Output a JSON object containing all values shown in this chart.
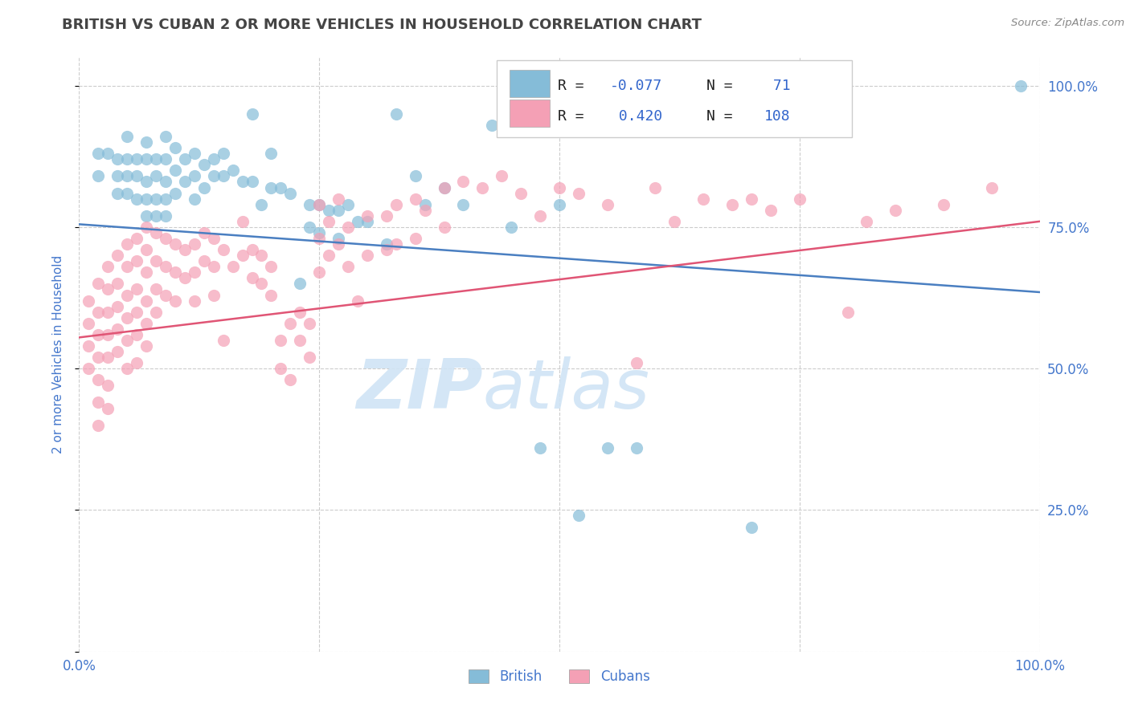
{
  "title": "BRITISH VS CUBAN 2 OR MORE VEHICLES IN HOUSEHOLD CORRELATION CHART",
  "source_text": "Source: ZipAtlas.com",
  "ylabel": "2 or more Vehicles in Household",
  "xlim": [
    0.0,
    1.0
  ],
  "ylim": [
    0.0,
    1.05
  ],
  "british_color": "#85bcd8",
  "cuban_color": "#f4a0b5",
  "british_line_color": "#4a7fc1",
  "cuban_line_color": "#e05575",
  "legend_british_label": "British",
  "legend_cuban_label": "Cubans",
  "R_british": -0.077,
  "N_british": 71,
  "R_cuban": 0.42,
  "N_cuban": 108,
  "watermark": "ZIPatlas",
  "background_color": "#ffffff",
  "grid_color": "#cccccc",
  "title_color": "#444444",
  "label_color": "#4477cc",
  "tick_color": "#4477cc",
  "legend_text_color": "#3366cc",
  "legend_label_color": "#222222",
  "british_points": [
    [
      0.02,
      0.88
    ],
    [
      0.02,
      0.84
    ],
    [
      0.03,
      0.88
    ],
    [
      0.04,
      0.87
    ],
    [
      0.04,
      0.84
    ],
    [
      0.04,
      0.81
    ],
    [
      0.05,
      0.91
    ],
    [
      0.05,
      0.87
    ],
    [
      0.05,
      0.84
    ],
    [
      0.05,
      0.81
    ],
    [
      0.06,
      0.87
    ],
    [
      0.06,
      0.84
    ],
    [
      0.06,
      0.8
    ],
    [
      0.07,
      0.9
    ],
    [
      0.07,
      0.87
    ],
    [
      0.07,
      0.83
    ],
    [
      0.07,
      0.8
    ],
    [
      0.07,
      0.77
    ],
    [
      0.08,
      0.87
    ],
    [
      0.08,
      0.84
    ],
    [
      0.08,
      0.8
    ],
    [
      0.08,
      0.77
    ],
    [
      0.09,
      0.91
    ],
    [
      0.09,
      0.87
    ],
    [
      0.09,
      0.83
    ],
    [
      0.09,
      0.8
    ],
    [
      0.09,
      0.77
    ],
    [
      0.1,
      0.89
    ],
    [
      0.1,
      0.85
    ],
    [
      0.1,
      0.81
    ],
    [
      0.11,
      0.87
    ],
    [
      0.11,
      0.83
    ],
    [
      0.12,
      0.88
    ],
    [
      0.12,
      0.84
    ],
    [
      0.12,
      0.8
    ],
    [
      0.13,
      0.86
    ],
    [
      0.13,
      0.82
    ],
    [
      0.14,
      0.87
    ],
    [
      0.14,
      0.84
    ],
    [
      0.15,
      0.88
    ],
    [
      0.15,
      0.84
    ],
    [
      0.16,
      0.85
    ],
    [
      0.17,
      0.83
    ],
    [
      0.18,
      0.95
    ],
    [
      0.18,
      0.83
    ],
    [
      0.19,
      0.79
    ],
    [
      0.2,
      0.88
    ],
    [
      0.2,
      0.82
    ],
    [
      0.21,
      0.82
    ],
    [
      0.22,
      0.81
    ],
    [
      0.23,
      0.65
    ],
    [
      0.24,
      0.79
    ],
    [
      0.24,
      0.75
    ],
    [
      0.25,
      0.79
    ],
    [
      0.25,
      0.74
    ],
    [
      0.26,
      0.78
    ],
    [
      0.27,
      0.78
    ],
    [
      0.27,
      0.73
    ],
    [
      0.28,
      0.79
    ],
    [
      0.29,
      0.76
    ],
    [
      0.3,
      0.76
    ],
    [
      0.32,
      0.72
    ],
    [
      0.33,
      0.95
    ],
    [
      0.35,
      0.84
    ],
    [
      0.36,
      0.79
    ],
    [
      0.38,
      0.82
    ],
    [
      0.4,
      0.79
    ],
    [
      0.43,
      0.93
    ],
    [
      0.45,
      0.75
    ],
    [
      0.48,
      0.36
    ],
    [
      0.5,
      0.79
    ],
    [
      0.52,
      0.24
    ],
    [
      0.55,
      0.36
    ],
    [
      0.58,
      0.36
    ],
    [
      0.7,
      0.22
    ],
    [
      0.98,
      1.0
    ]
  ],
  "cuban_points": [
    [
      0.01,
      0.62
    ],
    [
      0.01,
      0.58
    ],
    [
      0.01,
      0.54
    ],
    [
      0.01,
      0.5
    ],
    [
      0.02,
      0.65
    ],
    [
      0.02,
      0.6
    ],
    [
      0.02,
      0.56
    ],
    [
      0.02,
      0.52
    ],
    [
      0.02,
      0.48
    ],
    [
      0.02,
      0.44
    ],
    [
      0.02,
      0.4
    ],
    [
      0.03,
      0.68
    ],
    [
      0.03,
      0.64
    ],
    [
      0.03,
      0.6
    ],
    [
      0.03,
      0.56
    ],
    [
      0.03,
      0.52
    ],
    [
      0.03,
      0.47
    ],
    [
      0.03,
      0.43
    ],
    [
      0.04,
      0.7
    ],
    [
      0.04,
      0.65
    ],
    [
      0.04,
      0.61
    ],
    [
      0.04,
      0.57
    ],
    [
      0.04,
      0.53
    ],
    [
      0.05,
      0.72
    ],
    [
      0.05,
      0.68
    ],
    [
      0.05,
      0.63
    ],
    [
      0.05,
      0.59
    ],
    [
      0.05,
      0.55
    ],
    [
      0.05,
      0.5
    ],
    [
      0.06,
      0.73
    ],
    [
      0.06,
      0.69
    ],
    [
      0.06,
      0.64
    ],
    [
      0.06,
      0.6
    ],
    [
      0.06,
      0.56
    ],
    [
      0.06,
      0.51
    ],
    [
      0.07,
      0.75
    ],
    [
      0.07,
      0.71
    ],
    [
      0.07,
      0.67
    ],
    [
      0.07,
      0.62
    ],
    [
      0.07,
      0.58
    ],
    [
      0.07,
      0.54
    ],
    [
      0.08,
      0.74
    ],
    [
      0.08,
      0.69
    ],
    [
      0.08,
      0.64
    ],
    [
      0.08,
      0.6
    ],
    [
      0.09,
      0.73
    ],
    [
      0.09,
      0.68
    ],
    [
      0.09,
      0.63
    ],
    [
      0.1,
      0.72
    ],
    [
      0.1,
      0.67
    ],
    [
      0.1,
      0.62
    ],
    [
      0.11,
      0.71
    ],
    [
      0.11,
      0.66
    ],
    [
      0.12,
      0.72
    ],
    [
      0.12,
      0.67
    ],
    [
      0.12,
      0.62
    ],
    [
      0.13,
      0.74
    ],
    [
      0.13,
      0.69
    ],
    [
      0.14,
      0.73
    ],
    [
      0.14,
      0.68
    ],
    [
      0.14,
      0.63
    ],
    [
      0.15,
      0.71
    ],
    [
      0.15,
      0.55
    ],
    [
      0.16,
      0.68
    ],
    [
      0.17,
      0.76
    ],
    [
      0.17,
      0.7
    ],
    [
      0.18,
      0.71
    ],
    [
      0.18,
      0.66
    ],
    [
      0.19,
      0.7
    ],
    [
      0.19,
      0.65
    ],
    [
      0.2,
      0.68
    ],
    [
      0.2,
      0.63
    ],
    [
      0.21,
      0.55
    ],
    [
      0.21,
      0.5
    ],
    [
      0.22,
      0.58
    ],
    [
      0.22,
      0.48
    ],
    [
      0.23,
      0.6
    ],
    [
      0.23,
      0.55
    ],
    [
      0.24,
      0.58
    ],
    [
      0.24,
      0.52
    ],
    [
      0.25,
      0.79
    ],
    [
      0.25,
      0.73
    ],
    [
      0.25,
      0.67
    ],
    [
      0.26,
      0.76
    ],
    [
      0.26,
      0.7
    ],
    [
      0.27,
      0.8
    ],
    [
      0.27,
      0.72
    ],
    [
      0.28,
      0.75
    ],
    [
      0.28,
      0.68
    ],
    [
      0.29,
      0.62
    ],
    [
      0.3,
      0.77
    ],
    [
      0.3,
      0.7
    ],
    [
      0.32,
      0.77
    ],
    [
      0.32,
      0.71
    ],
    [
      0.33,
      0.79
    ],
    [
      0.33,
      0.72
    ],
    [
      0.35,
      0.8
    ],
    [
      0.35,
      0.73
    ],
    [
      0.36,
      0.78
    ],
    [
      0.38,
      0.82
    ],
    [
      0.38,
      0.75
    ],
    [
      0.4,
      0.83
    ],
    [
      0.42,
      0.82
    ],
    [
      0.44,
      0.84
    ],
    [
      0.46,
      0.81
    ],
    [
      0.48,
      0.77
    ],
    [
      0.5,
      0.82
    ],
    [
      0.52,
      0.81
    ],
    [
      0.55,
      0.79
    ],
    [
      0.58,
      0.51
    ],
    [
      0.6,
      0.82
    ],
    [
      0.62,
      0.76
    ],
    [
      0.65,
      0.8
    ],
    [
      0.68,
      0.79
    ],
    [
      0.7,
      0.8
    ],
    [
      0.72,
      0.78
    ],
    [
      0.75,
      0.8
    ],
    [
      0.8,
      0.6
    ],
    [
      0.82,
      0.76
    ],
    [
      0.85,
      0.78
    ],
    [
      0.9,
      0.79
    ],
    [
      0.95,
      0.82
    ]
  ]
}
